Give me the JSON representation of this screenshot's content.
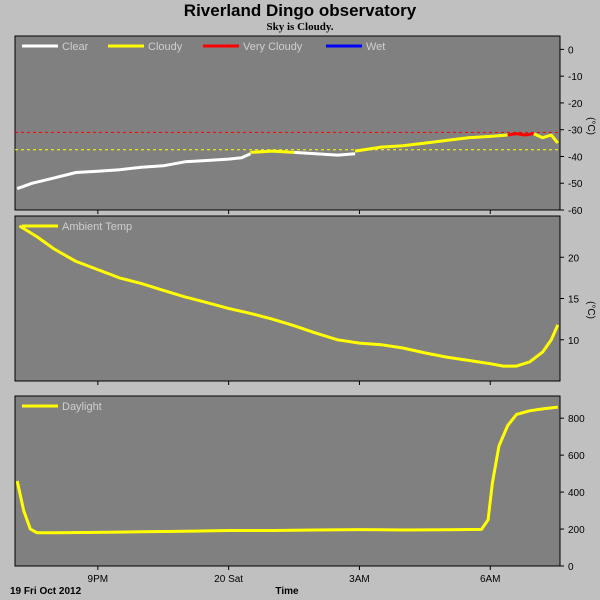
{
  "header": {
    "title": "Riverland Dingo observatory",
    "subtitle": "Sky is Cloudy."
  },
  "footer": {
    "date_label": "19 Fri Oct 2012",
    "x_axis_label": "Time"
  },
  "colors": {
    "background": "#c0c0c0",
    "plot_bg": "#808080",
    "clear": "#ffffff",
    "cloudy": "#ffff00",
    "very_cloudy": "#ff0000",
    "wet": "#0000ff"
  },
  "chart_data": [
    {
      "type": "line",
      "name": "sky",
      "title": "",
      "ylabel": "(°C)",
      "ylim": [
        -60,
        5
      ],
      "yticks": [
        0,
        -10,
        -20,
        -30,
        -40,
        -50,
        -60
      ],
      "xticks": [
        "9PM",
        "20 Sat",
        "3AM",
        "6AM"
      ],
      "xlim_hours": [
        19.1,
        31.6
      ],
      "xtick_hours": [
        21,
        24,
        27,
        30
      ],
      "legend": [
        "Clear",
        "Cloudy",
        "Very Cloudy",
        "Wet"
      ],
      "thresholds": [
        {
          "value": -31,
          "color": "#ff0000"
        },
        {
          "value": -37.5,
          "color": "#ffff00"
        }
      ],
      "series": [
        {
          "name": "Clear",
          "color": "#ffffff",
          "points": [
            [
              19.15,
              -52
            ],
            [
              19.5,
              -50
            ],
            [
              20.0,
              -48
            ],
            [
              20.5,
              -46
            ],
            [
              21.0,
              -45.5
            ],
            [
              21.5,
              -45
            ],
            [
              22.0,
              -44
            ],
            [
              22.5,
              -43.5
            ],
            [
              23.0,
              -42
            ],
            [
              23.5,
              -41.5
            ],
            [
              24.0,
              -41
            ],
            [
              24.3,
              -40.5
            ],
            [
              24.5,
              -39
            ]
          ]
        },
        {
          "name": "Cloudy",
          "color": "#ffff00",
          "points": [
            [
              24.5,
              -38.5
            ],
            [
              25.0,
              -38
            ],
            [
              25.5,
              -38.5
            ]
          ]
        },
        {
          "name": "Clear",
          "color": "#ffffff",
          "points": [
            [
              25.5,
              -38.5
            ],
            [
              26.0,
              -39
            ],
            [
              26.5,
              -39.5
            ],
            [
              26.9,
              -39
            ]
          ]
        },
        {
          "name": "Cloudy",
          "color": "#ffff00",
          "points": [
            [
              26.9,
              -38
            ],
            [
              27.5,
              -36.5
            ],
            [
              28.0,
              -36
            ],
            [
              28.5,
              -35
            ],
            [
              29.0,
              -34
            ],
            [
              29.5,
              -33
            ],
            [
              30.0,
              -32.5
            ],
            [
              30.4,
              -32
            ]
          ]
        },
        {
          "name": "Very Cloudy",
          "color": "#ff0000",
          "points": [
            [
              30.4,
              -32
            ],
            [
              30.6,
              -31.5
            ],
            [
              30.8,
              -32
            ],
            [
              31.0,
              -31.5
            ]
          ]
        },
        {
          "name": "Cloudy",
          "color": "#ffff00",
          "points": [
            [
              31.0,
              -31.5
            ],
            [
              31.2,
              -33
            ],
            [
              31.4,
              -32
            ],
            [
              31.55,
              -35
            ]
          ]
        }
      ]
    },
    {
      "type": "line",
      "name": "ambient",
      "title": "",
      "ylabel": "(°C)",
      "ylim": [
        5,
        25
      ],
      "yticks": [
        10,
        15,
        20
      ],
      "xticks": [
        "9PM",
        "20 Sat",
        "3AM",
        "6AM"
      ],
      "xlim_hours": [
        19.1,
        31.6
      ],
      "xtick_hours": [
        21,
        24,
        27,
        30
      ],
      "legend": [
        "Ambient Temp"
      ],
      "series": [
        {
          "name": "Ambient Temp",
          "color": "#ffff00",
          "points": [
            [
              19.2,
              23.8
            ],
            [
              19.6,
              22.5
            ],
            [
              20.0,
              21
            ],
            [
              20.5,
              19.5
            ],
            [
              21.0,
              18.5
            ],
            [
              21.5,
              17.5
            ],
            [
              22.0,
              16.8
            ],
            [
              22.5,
              16
            ],
            [
              23.0,
              15.2
            ],
            [
              23.5,
              14.5
            ],
            [
              24.0,
              13.8
            ],
            [
              24.5,
              13.2
            ],
            [
              25.0,
              12.5
            ],
            [
              25.5,
              11.7
            ],
            [
              26.0,
              10.8
            ],
            [
              26.5,
              10
            ],
            [
              27.0,
              9.6
            ],
            [
              27.5,
              9.4
            ],
            [
              28.0,
              9
            ],
            [
              28.5,
              8.4
            ],
            [
              29.0,
              7.9
            ],
            [
              29.5,
              7.5
            ],
            [
              30.0,
              7.1
            ],
            [
              30.3,
              6.8
            ],
            [
              30.6,
              6.8
            ],
            [
              30.9,
              7.3
            ],
            [
              31.2,
              8.5
            ],
            [
              31.4,
              10
            ],
            [
              31.55,
              11.8
            ]
          ]
        }
      ]
    },
    {
      "type": "line",
      "name": "daylight",
      "title": "",
      "ylabel": "",
      "ylim": [
        0,
        920
      ],
      "yticks": [
        0,
        200,
        400,
        600,
        800
      ],
      "xticks": [
        "9PM",
        "20 Sat",
        "3AM",
        "6AM"
      ],
      "xlim_hours": [
        19.1,
        31.6
      ],
      "xtick_hours": [
        21,
        24,
        27,
        30
      ],
      "legend": [
        "Daylight"
      ],
      "series": [
        {
          "name": "Daylight",
          "color": "#ffff00",
          "points": [
            [
              19.15,
              460
            ],
            [
              19.3,
              300
            ],
            [
              19.45,
              200
            ],
            [
              19.6,
              180
            ],
            [
              20.0,
              180
            ],
            [
              21.0,
              182
            ],
            [
              22.0,
              185
            ],
            [
              23.0,
              188
            ],
            [
              24.0,
              192
            ],
            [
              25.0,
              192
            ],
            [
              26.0,
              195
            ],
            [
              27.0,
              197
            ],
            [
              28.0,
              195
            ],
            [
              29.0,
              196
            ],
            [
              29.8,
              198
            ],
            [
              29.95,
              250
            ],
            [
              30.05,
              450
            ],
            [
              30.2,
              650
            ],
            [
              30.4,
              760
            ],
            [
              30.6,
              820
            ],
            [
              30.9,
              840
            ],
            [
              31.2,
              850
            ],
            [
              31.55,
              860
            ]
          ]
        }
      ]
    }
  ]
}
